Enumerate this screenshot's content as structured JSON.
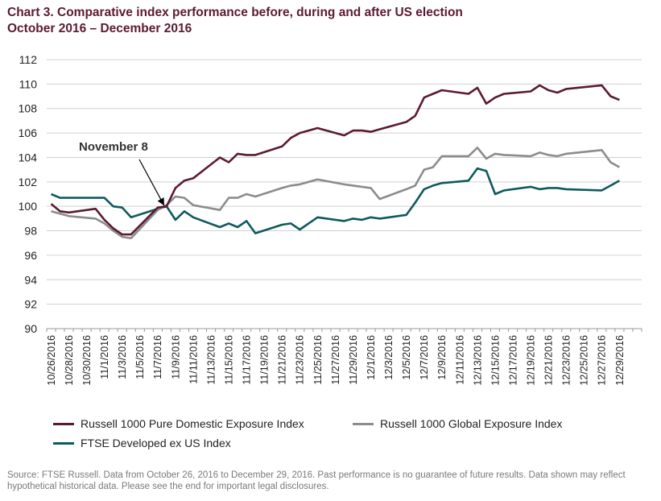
{
  "title": {
    "line1": "Chart 3. Comparative index performance before, during and after US election",
    "line2": "October 2016 – December 2016"
  },
  "chart_data": {
    "type": "line",
    "ylim": [
      90,
      112
    ],
    "yticks": [
      90,
      92,
      94,
      96,
      98,
      100,
      102,
      104,
      106,
      108,
      110,
      112
    ],
    "grid": true,
    "legend_position": "bottom",
    "x": [
      "10/26/2016",
      "10/27/2016",
      "10/28/2016",
      "10/31/2016",
      "11/1/2016",
      "11/2/2016",
      "11/3/2016",
      "11/4/2016",
      "11/7/2016",
      "11/8/2016",
      "11/9/2016",
      "11/10/2016",
      "11/11/2016",
      "11/14/2016",
      "11/15/2016",
      "11/16/2016",
      "11/17/2016",
      "11/18/2016",
      "11/21/2016",
      "11/22/2016",
      "11/23/2016",
      "11/25/2016",
      "11/28/2016",
      "11/29/2016",
      "11/30/2016",
      "12/1/2016",
      "12/2/2016",
      "12/5/2016",
      "12/6/2016",
      "12/7/2016",
      "12/8/2016",
      "12/9/2016",
      "12/12/2016",
      "12/13/2016",
      "12/14/2016",
      "12/15/2016",
      "12/16/2016",
      "12/19/2016",
      "12/20/2016",
      "12/21/2016",
      "12/22/2016",
      "12/23/2016",
      "12/27/2016",
      "12/28/2016",
      "12/29/2016"
    ],
    "tick_labels": [
      "10/26/2016",
      "10/28/2016",
      "10/30/2016",
      "11/1/2016",
      "11/3/2016",
      "11/5/2016",
      "11/7/2016",
      "11/9/2016",
      "11/11/2016",
      "11/13/2016",
      "11/15/2016",
      "11/17/2016",
      "11/19/2016",
      "11/21/2016",
      "11/23/2016",
      "11/25/2016",
      "11/27/2016",
      "11/29/2016",
      "12/1/2016",
      "12/3/2016",
      "12/5/2016",
      "12/7/2016",
      "12/9/2016",
      "12/11/2016",
      "12/13/2016",
      "12/15/2016",
      "12/17/2016",
      "12/19/2016",
      "12/21/2016",
      "12/23/2016",
      "12/25/2016",
      "12/27/2016",
      "12/29/2016"
    ],
    "series": [
      {
        "name": "Russell 1000 Pure Domestic Exposure Index",
        "color": "#5b1a33",
        "values": [
          100.2,
          99.6,
          99.5,
          99.8,
          98.9,
          98.2,
          97.7,
          97.7,
          99.9,
          100.0,
          101.5,
          102.1,
          102.3,
          104.0,
          103.6,
          104.3,
          104.2,
          104.2,
          104.9,
          105.6,
          106.0,
          106.4,
          105.8,
          106.2,
          106.2,
          106.1,
          106.3,
          106.9,
          107.4,
          108.9,
          109.2,
          109.5,
          109.2,
          109.7,
          108.4,
          108.9,
          109.2,
          109.4,
          109.9,
          109.5,
          109.3,
          109.6,
          109.9,
          109.0,
          108.7
        ]
      },
      {
        "name": "Russell 1000 Global Exposure Index",
        "color": "#8c8c8c",
        "values": [
          99.6,
          99.4,
          99.2,
          99.0,
          98.6,
          98.0,
          97.5,
          97.4,
          99.7,
          100.1,
          100.8,
          100.7,
          100.1,
          99.7,
          100.7,
          100.7,
          101.0,
          100.8,
          101.5,
          101.7,
          101.8,
          102.2,
          101.8,
          101.7,
          101.6,
          101.5,
          100.6,
          101.4,
          101.7,
          103.0,
          103.2,
          104.1,
          104.1,
          104.8,
          103.9,
          104.3,
          104.2,
          104.1,
          104.4,
          104.2,
          104.1,
          104.3,
          104.6,
          103.6,
          103.2
        ]
      },
      {
        "name": "FTSE Developed ex US Index",
        "color": "#0e5a5e",
        "values": [
          101.0,
          100.7,
          100.7,
          100.7,
          100.7,
          100.0,
          99.9,
          99.1,
          99.8,
          100.0,
          98.9,
          99.6,
          99.1,
          98.3,
          98.6,
          98.3,
          98.8,
          97.8,
          98.5,
          98.6,
          98.1,
          99.1,
          98.8,
          99.0,
          98.9,
          99.1,
          99.0,
          99.3,
          100.3,
          101.4,
          101.7,
          101.9,
          102.1,
          103.1,
          102.9,
          101.0,
          101.3,
          101.6,
          101.4,
          101.5,
          101.5,
          101.4,
          101.3,
          101.7,
          102.1
        ]
      }
    ],
    "annotation": {
      "text": "November 8",
      "target_date": "11/8/2016",
      "target_value": 99.8
    }
  },
  "source": "Source: FTSE Russell. Data from October 26, 2016 to December 29, 2016. Past performance is no guarantee of future results. Data shown may reflect hypothetical historical data. Please see the end for important legal disclosures."
}
